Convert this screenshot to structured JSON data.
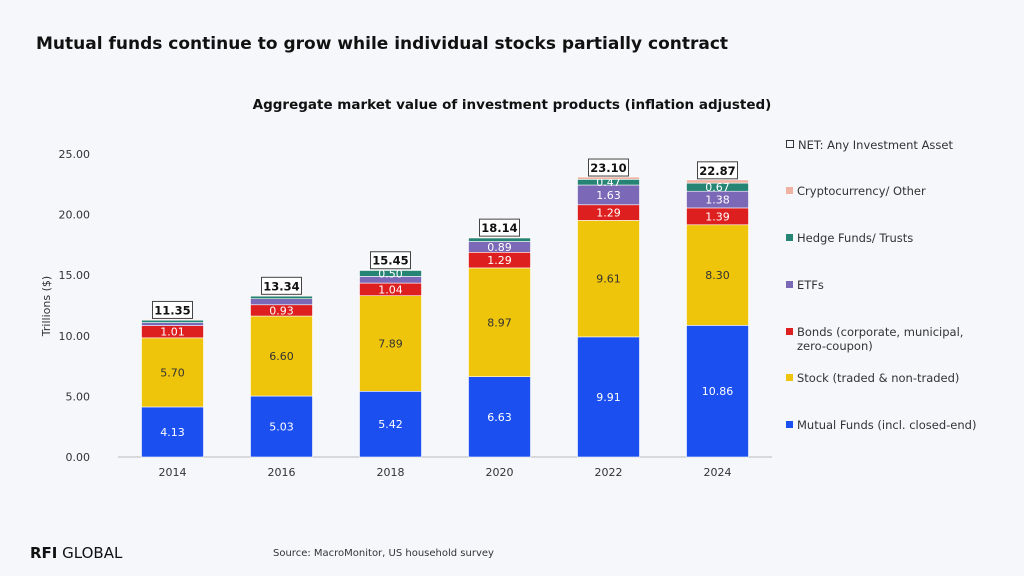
{
  "headline": "Mutual funds continue to grow while individual stocks partially contract",
  "source": "Source: MacroMonitor, US household survey",
  "logo": "RFI GLOBAL",
  "chart_data": {
    "type": "stacked-bar",
    "title": "Aggregate market value of investment products (inflation adjusted)",
    "ylabel": "Trillions ($)",
    "xlabel": "",
    "ylim": [
      0,
      25
    ],
    "yticks": [
      "0.00",
      "5.00",
      "10.00",
      "15.00",
      "20.00",
      "25.00"
    ],
    "categories": [
      "2014",
      "2016",
      "2018",
      "2020",
      "2022",
      "2024"
    ],
    "grid": false,
    "legend_position": "right",
    "series": [
      {
        "name": "Mutual Funds (incl. closed-end)",
        "color": "#1c4ff0",
        "values": [
          4.13,
          5.03,
          5.42,
          6.63,
          9.91,
          10.86
        ],
        "labels": [
          "4.13",
          "5.03",
          "5.42",
          "6.63",
          "9.91",
          "10.86"
        ]
      },
      {
        "name": "Stock (traded & non-traded)",
        "color": "#eec50a",
        "values": [
          5.7,
          6.6,
          7.89,
          8.97,
          9.61,
          8.3
        ],
        "labels": [
          "5.70",
          "6.60",
          "7.89",
          "8.97",
          "9.61",
          "8.30"
        ]
      },
      {
        "name": "Bonds (corporate, municipal, zero-coupon)",
        "color": "#dd1f1f",
        "values": [
          1.01,
          0.93,
          1.04,
          1.29,
          1.29,
          1.39
        ],
        "labels": [
          "1.01",
          "0.93",
          "1.04",
          "1.29",
          "1.29",
          "1.39"
        ]
      },
      {
        "name": "ETFs",
        "color": "#7b68b6",
        "values": [
          0.25,
          0.5,
          0.55,
          0.89,
          1.63,
          1.38
        ],
        "labels": [
          "",
          "",
          "",
          "0.89",
          "1.63",
          "1.38"
        ]
      },
      {
        "name": "Hedge Funds/ Trusts",
        "color": "#258474",
        "values": [
          0.2,
          0.22,
          0.5,
          0.3,
          0.47,
          0.67
        ],
        "labels": [
          "",
          "",
          "0.50",
          "",
          "0.47",
          "0.67"
        ]
      },
      {
        "name": "Cryptocurrency/ Other",
        "color": "#f0b3a3",
        "values": [
          0.06,
          0.06,
          0.05,
          0.06,
          0.19,
          0.27
        ],
        "labels": [
          "",
          "",
          "",
          "",
          "",
          ""
        ]
      }
    ],
    "net": {
      "name": "NET: Any Investment Asset",
      "values": [
        "11.35",
        "13.34",
        "15.45",
        "18.14",
        "23.10",
        "22.87"
      ]
    }
  }
}
